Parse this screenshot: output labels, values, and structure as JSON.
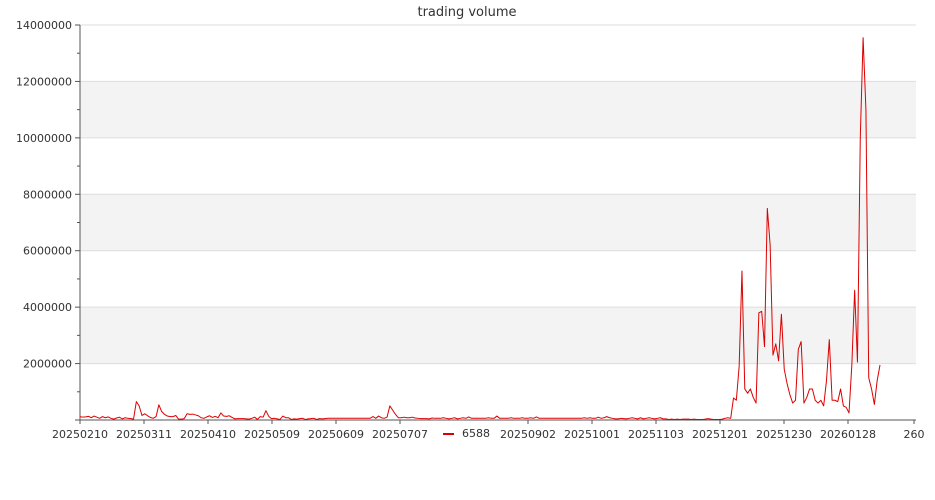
{
  "chart_data": {
    "type": "line",
    "title": "trading volume",
    "xlabel": "",
    "ylabel": "",
    "ylim": [
      0,
      14000000
    ],
    "y_ticks": [
      0,
      2000000,
      4000000,
      6000000,
      8000000,
      10000000,
      12000000,
      14000000
    ],
    "y_tick_labels": [
      "",
      "2000000",
      "4000000",
      "6000000",
      "8000000",
      "10000000",
      "12000000",
      "14000000"
    ],
    "x_tick_labels": [
      "20250210",
      "20250311",
      "20250410",
      "20250509",
      "20250609",
      "20250707",
      "20250902",
      "20251001",
      "20251103",
      "20251201",
      "20251230",
      "20260128",
      "260"
    ],
    "grid": true,
    "legend_position": "bottom-center",
    "series": [
      {
        "name": "6588",
        "color": "#dd0000",
        "values": [
          120000,
          100000,
          110000,
          130000,
          80000,
          140000,
          100000,
          60000,
          120000,
          80000,
          110000,
          60000,
          30000,
          70000,
          100000,
          40000,
          80000,
          60000,
          50000,
          30000,
          650000,
          500000,
          160000,
          220000,
          150000,
          90000,
          60000,
          120000,
          540000,
          300000,
          200000,
          140000,
          120000,
          120000,
          160000,
          30000,
          30000,
          50000,
          220000,
          200000,
          210000,
          180000,
          150000,
          80000,
          60000,
          110000,
          150000,
          90000,
          130000,
          80000,
          250000,
          140000,
          130000,
          150000,
          90000,
          40000,
          50000,
          50000,
          50000,
          40000,
          30000,
          60000,
          100000,
          20000,
          120000,
          100000,
          330000,
          130000,
          50000,
          60000,
          40000,
          20000,
          140000,
          80000,
          80000,
          20000,
          40000,
          30000,
          50000,
          60000,
          20000,
          40000,
          50000,
          60000,
          20000,
          50000,
          40000,
          50000,
          60000,
          60000,
          60000,
          60000,
          60000,
          60000,
          60000,
          60000,
          60000,
          60000,
          60000,
          60000,
          60000,
          60000,
          60000,
          60000,
          120000,
          60000,
          140000,
          80000,
          60000,
          100000,
          500000,
          350000,
          200000,
          80000,
          80000,
          100000,
          80000,
          80000,
          100000,
          70000,
          60000,
          50000,
          50000,
          50000,
          40000,
          70000,
          60000,
          60000,
          60000,
          80000,
          60000,
          40000,
          60000,
          80000,
          40000,
          60000,
          80000,
          60000,
          110000,
          60000,
          60000,
          60000,
          60000,
          60000,
          60000,
          80000,
          60000,
          60000,
          140000,
          60000,
          60000,
          60000,
          60000,
          80000,
          60000,
          60000,
          60000,
          80000,
          60000,
          60000,
          80000,
          60000,
          110000,
          60000,
          60000,
          60000,
          60000,
          60000,
          60000,
          60000,
          60000,
          60000,
          60000,
          60000,
          60000,
          60000,
          60000,
          60000,
          60000,
          80000,
          60000,
          80000,
          60000,
          60000,
          100000,
          60000,
          80000,
          120000,
          80000,
          60000,
          40000,
          40000,
          60000,
          50000,
          40000,
          60000,
          80000,
          60000,
          40000,
          80000,
          40000,
          60000,
          80000,
          60000,
          40000,
          60000,
          80000,
          40000,
          40000,
          20000,
          30000,
          20000,
          30000,
          20000,
          30000,
          30000,
          30000,
          20000,
          30000,
          20000,
          20000,
          20000,
          30000,
          50000,
          30000,
          20000,
          20000,
          20000,
          30000,
          60000,
          80000,
          60000,
          780000,
          700000,
          1900000,
          5280000,
          1100000,
          950000,
          1100000,
          800000,
          600000,
          3800000,
          3850000,
          2600000,
          7500000,
          6200000,
          2300000,
          2700000,
          2100000,
          3750000,
          1800000,
          1300000,
          900000,
          600000,
          700000,
          2500000,
          2780000,
          600000,
          800000,
          1100000,
          1100000,
          700000,
          600000,
          700000,
          500000,
          1400000,
          2850000,
          700000,
          700000,
          650000,
          1100000,
          500000,
          450000,
          250000,
          1950000,
          4600000,
          2050000,
          10000000,
          13550000,
          11000000,
          1500000,
          1100000,
          550000,
          1400000,
          1950000
        ]
      }
    ]
  }
}
